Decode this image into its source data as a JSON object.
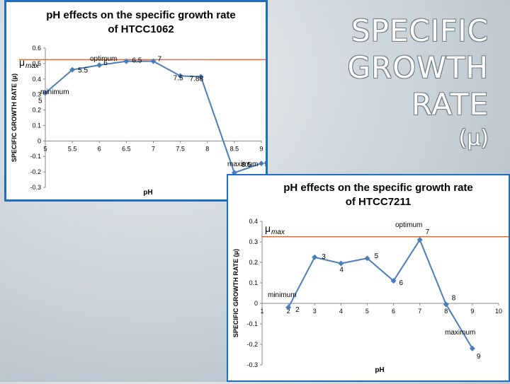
{
  "slide": {
    "title_lines": [
      "SPECIFIC",
      "GROWTH",
      "RATE"
    ],
    "symbol": "(μ)"
  },
  "chart_data": [
    {
      "type": "line",
      "title": "pH effects on the specific growth rate of HTCC1062",
      "xlabel": "pH",
      "ylabel": "SPECIFIC GROWTH RATE (μ)",
      "x_ticks": [
        "5",
        "5.5",
        "6",
        "6.5",
        "7",
        "7.5",
        "8",
        "8.5",
        "9"
      ],
      "y_ticks": [
        "0.6",
        "0.5",
        "0.4",
        "0.3",
        "0.2",
        "0.1",
        "0",
        "-0.1",
        "-0.2",
        "-0.3"
      ],
      "xlim": [
        5,
        9
      ],
      "ylim": [
        -0.3,
        0.6
      ],
      "grid": false,
      "series": [
        {
          "color": "#4a7ebb",
          "x": [
            5,
            5.5,
            6,
            6.5,
            7,
            7.5,
            7.88,
            8.5,
            9
          ],
          "y": [
            0.31,
            0.46,
            0.49,
            0.515,
            0.515,
            0.42,
            0.415,
            -0.205,
            -0.145
          ],
          "point_labels": [
            "5",
            "5.5",
            "6",
            "6.5",
            "7",
            "7.5",
            "7.88",
            "8.5",
            "9"
          ]
        }
      ],
      "reference_line": {
        "y": 0.525,
        "color": "#e36c2a"
      },
      "annotations": {
        "mu_max": "μ",
        "mu_max_sub": "max",
        "optimum": "optimum",
        "minimum": "minimum",
        "maximum": "maximum"
      }
    },
    {
      "type": "line",
      "title": "pH effects on the specific growth rate of HTCC7211",
      "xlabel": "pH",
      "ylabel": "SPECIFIC GROWTH RATE (μ)",
      "x_ticks": [
        "1",
        "2",
        "3",
        "4",
        "5",
        "6",
        "7",
        "8",
        "9",
        "10"
      ],
      "y_ticks": [
        "0.4",
        "0.3",
        "0.2",
        "0.1",
        "0",
        "-0.1",
        "-0.2",
        "-0.3"
      ],
      "xlim": [
        1,
        10
      ],
      "ylim": [
        -0.3,
        0.4
      ],
      "grid": false,
      "series": [
        {
          "color": "#4a7ebb",
          "x": [
            2,
            3,
            4,
            5,
            6,
            7,
            8,
            9
          ],
          "y": [
            -0.02,
            0.225,
            0.195,
            0.22,
            0.11,
            0.31,
            -0.005,
            -0.22
          ],
          "point_labels": [
            "2",
            "3",
            "4",
            "5",
            "6",
            "7",
            "8",
            "9"
          ]
        }
      ],
      "reference_line": {
        "y": 0.325,
        "color": "#e36c2a"
      },
      "annotations": {
        "mu_max": "μ",
        "mu_max_sub": "max",
        "optimum": "optimum",
        "minimum": "minimum",
        "maximum": "maximum"
      }
    }
  ]
}
